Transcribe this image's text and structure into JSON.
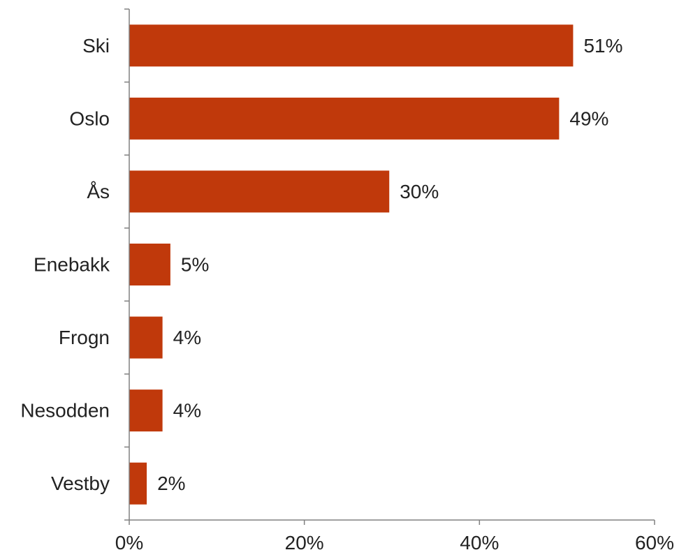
{
  "chart_data": {
    "type": "bar",
    "orientation": "horizontal",
    "categories": [
      "Ski",
      "Oslo",
      "Ås",
      "Enebakk",
      "Frogn",
      "Nesodden",
      "Vestby"
    ],
    "values": [
      0.507,
      0.491,
      0.297,
      0.047,
      0.038,
      0.038,
      0.02
    ],
    "data_labels": [
      "51%",
      "49%",
      "30%",
      "5%",
      "4%",
      "4%",
      "2%"
    ],
    "xlim": [
      0,
      0.6
    ],
    "x_ticks": [
      0,
      0.2,
      0.4,
      0.6
    ],
    "x_tick_labels": [
      "0%",
      "20%",
      "40%",
      "60%"
    ],
    "grid": false,
    "legend": "none",
    "bar_color": "#C0390B"
  }
}
